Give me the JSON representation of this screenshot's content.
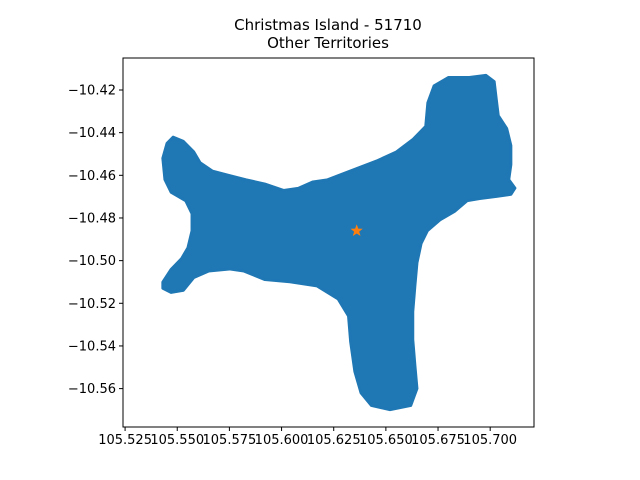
{
  "title": {
    "line1": "Christmas Island - 51710",
    "line2": "Other Territories"
  },
  "colors": {
    "land": "#1f77b4",
    "marker": "#ff7f0e",
    "axes": "#000000",
    "background": "#ffffff"
  },
  "map": {
    "region": "Christmas Island",
    "marker_icon": "star-icon",
    "marker": {
      "lon": 105.636,
      "lat": -10.486
    },
    "outline": [
      [
        105.543,
        -10.51
      ],
      [
        105.547,
        -10.504
      ],
      [
        105.552,
        -10.499
      ],
      [
        105.555,
        -10.494
      ],
      [
        105.557,
        -10.486
      ],
      [
        105.557,
        -10.478
      ],
      [
        105.554,
        -10.472
      ],
      [
        105.547,
        -10.468
      ],
      [
        105.544,
        -10.462
      ],
      [
        105.543,
        -10.452
      ],
      [
        105.545,
        -10.445
      ],
      [
        105.548,
        -10.442
      ],
      [
        105.553,
        -10.444
      ],
      [
        105.558,
        -10.449
      ],
      [
        105.561,
        -10.454
      ],
      [
        105.567,
        -10.458
      ],
      [
        105.575,
        -10.46
      ],
      [
        105.583,
        -10.462
      ],
      [
        105.592,
        -10.464
      ],
      [
        105.601,
        -10.467
      ],
      [
        105.608,
        -10.466
      ],
      [
        105.615,
        -10.463
      ],
      [
        105.622,
        -10.462
      ],
      [
        105.63,
        -10.459
      ],
      [
        105.638,
        -10.456
      ],
      [
        105.646,
        -10.453
      ],
      [
        105.655,
        -10.449
      ],
      [
        105.663,
        -10.443
      ],
      [
        105.669,
        -10.437
      ],
      [
        105.67,
        -10.426
      ],
      [
        105.673,
        -10.418
      ],
      [
        105.68,
        -10.414
      ],
      [
        105.69,
        -10.414
      ],
      [
        105.698,
        -10.413
      ],
      [
        105.702,
        -10.416
      ],
      [
        105.703,
        -10.424
      ],
      [
        105.704,
        -10.432
      ],
      [
        105.708,
        -10.438
      ],
      [
        105.71,
        -10.446
      ],
      [
        105.71,
        -10.455
      ],
      [
        105.709,
        -10.462
      ],
      [
        105.712,
        -10.466
      ],
      [
        105.71,
        -10.469
      ],
      [
        105.703,
        -10.47
      ],
      [
        105.695,
        -10.471
      ],
      [
        105.689,
        -10.472
      ],
      [
        105.683,
        -10.477
      ],
      [
        105.676,
        -10.481
      ],
      [
        105.67,
        -10.486
      ],
      [
        105.667,
        -10.492
      ],
      [
        105.665,
        -10.501
      ],
      [
        105.664,
        -10.512
      ],
      [
        105.663,
        -10.524
      ],
      [
        105.663,
        -10.537
      ],
      [
        105.664,
        -10.549
      ],
      [
        105.665,
        -10.56
      ],
      [
        105.662,
        -10.568
      ],
      [
        105.652,
        -10.57
      ],
      [
        105.643,
        -10.568
      ],
      [
        105.638,
        -10.562
      ],
      [
        105.635,
        -10.552
      ],
      [
        105.633,
        -10.538
      ],
      [
        105.632,
        -10.526
      ],
      [
        105.627,
        -10.518
      ],
      [
        105.617,
        -10.512
      ],
      [
        105.604,
        -10.51
      ],
      [
        105.592,
        -10.509
      ],
      [
        105.582,
        -10.505
      ],
      [
        105.575,
        -10.504
      ],
      [
        105.565,
        -10.505
      ],
      [
        105.558,
        -10.508
      ],
      [
        105.553,
        -10.514
      ],
      [
        105.547,
        -10.515
      ],
      [
        105.543,
        -10.513
      ]
    ]
  },
  "chart_data": {
    "type": "map",
    "title": "Christmas Island - 51710\nOther Territories",
    "xlim": [
      105.524,
      105.721
    ],
    "ylim": [
      -10.578,
      -10.405
    ],
    "x_ticks": [
      105.525,
      105.55,
      105.575,
      105.6,
      105.625,
      105.65,
      105.675,
      105.7
    ],
    "x_tick_labels": [
      "105.525",
      "105.550",
      "105.575",
      "105.600",
      "105.625",
      "105.650",
      "105.675",
      "105.700"
    ],
    "y_ticks": [
      -10.42,
      -10.44,
      -10.46,
      -10.48,
      -10.5,
      -10.52,
      -10.54,
      -10.56
    ],
    "y_tick_labels": [
      "−10.42",
      "−10.44",
      "−10.46",
      "−10.48",
      "−10.50",
      "−10.52",
      "−10.54",
      "−10.56"
    ],
    "grid": false,
    "series": [
      {
        "kind": "polygon",
        "color": "#1f77b4"
      },
      {
        "kind": "point",
        "marker": "star",
        "color": "#ff7f0e",
        "x": 105.636,
        "y": -10.486
      }
    ]
  }
}
